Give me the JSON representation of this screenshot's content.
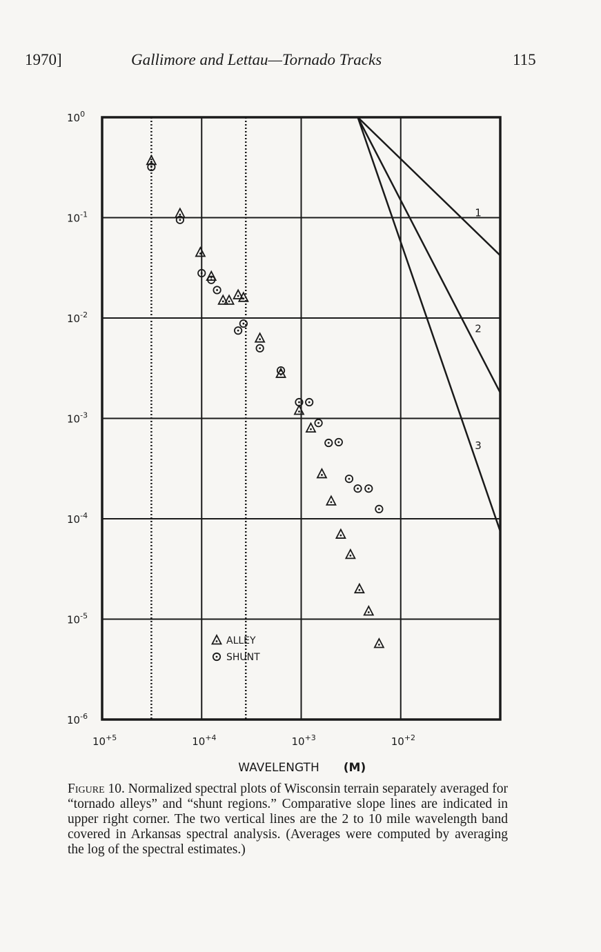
{
  "header": {
    "left": "1970]",
    "center": "Gallimore and Lettau—Tornado Tracks",
    "right": "115"
  },
  "chart_data": {
    "type": "scatter",
    "log_x": true,
    "log_y": true,
    "x_reversed": true,
    "xlabel": "WAVELENGTH",
    "xlabel_unit": "(M)",
    "x_ticks": [
      {
        "value": 100000,
        "label": "10+5"
      },
      {
        "value": 10000,
        "label": "10+4"
      },
      {
        "value": 1000,
        "label": "10+3"
      },
      {
        "value": 100,
        "label": "10+2"
      }
    ],
    "y_ticks": [
      {
        "value": 1,
        "label": "10",
        "exp": "0"
      },
      {
        "value": 0.1,
        "label": "10",
        "exp": "-1"
      },
      {
        "value": 0.01,
        "label": "10",
        "exp": "-2"
      },
      {
        "value": 0.001,
        "label": "10",
        "exp": "-3"
      },
      {
        "value": 0.0001,
        "label": "10",
        "exp": "-4"
      },
      {
        "value": 1e-05,
        "label": "10",
        "exp": "-5"
      },
      {
        "value": 1e-06,
        "label": "10",
        "exp": "-6"
      }
    ],
    "xlim": [
      100000,
      10
    ],
    "ylim": [
      1e-06,
      1
    ],
    "grid": true,
    "vertical_band_lines": [
      32000,
      3600
    ],
    "legend_position": "lower-left",
    "series": [
      {
        "name": "ALLEY",
        "marker": "triangle",
        "x": [
          32000,
          16500,
          10300,
          8000,
          6100,
          5300,
          4300,
          3800,
          2600,
          1600,
          1050,
          800,
          620,
          500,
          400,
          320,
          260,
          210,
          165
        ],
        "y": [
          0.37,
          0.11,
          0.045,
          0.026,
          0.015,
          0.015,
          0.017,
          0.016,
          0.0063,
          0.0028,
          0.0012,
          0.0008,
          0.00028,
          0.00015,
          7e-05,
          4.4e-05,
          2e-05,
          1.2e-05,
          5.7e-06
        ]
      },
      {
        "name": "SHUNT",
        "marker": "circle",
        "x": [
          32000,
          16500,
          10000,
          8000,
          7000,
          4300,
          3800,
          2600,
          1600,
          1050,
          830,
          670,
          530,
          420,
          330,
          270,
          210,
          165
        ],
        "y": [
          0.32,
          0.095,
          0.028,
          0.024,
          0.019,
          0.0075,
          0.0088,
          0.005,
          0.003,
          0.00145,
          0.00145,
          0.0009,
          0.00057,
          0.00058,
          0.00025,
          0.0002,
          0.0002,
          0.000125
        ]
      }
    ],
    "slope_lines": [
      {
        "label": "1",
        "x": [
          270,
          10
        ],
        "y": [
          1,
          0.042
        ]
      },
      {
        "label": "2",
        "x": [
          270,
          10
        ],
        "y": [
          1,
          0.0018
        ]
      },
      {
        "label": "3",
        "x": [
          270,
          10
        ],
        "y": [
          1,
          7.5e-05
        ]
      }
    ],
    "legend": [
      {
        "marker": "triangle",
        "label": "ALLEY"
      },
      {
        "marker": "circle",
        "label": "SHUNT"
      }
    ]
  },
  "caption": {
    "label": "Figure 10.",
    "text": "Normalized spectral plots of Wisconsin terrain separately averaged for “tornado alleys” and “shunt regions.” Comparative slope lines are indicated in upper right corner. The two vertical lines are the 2 to 10 mile wavelength band covered in Arkansas spectral analysis. (Averages were computed by averaging the log of the spectral estimates.)"
  }
}
